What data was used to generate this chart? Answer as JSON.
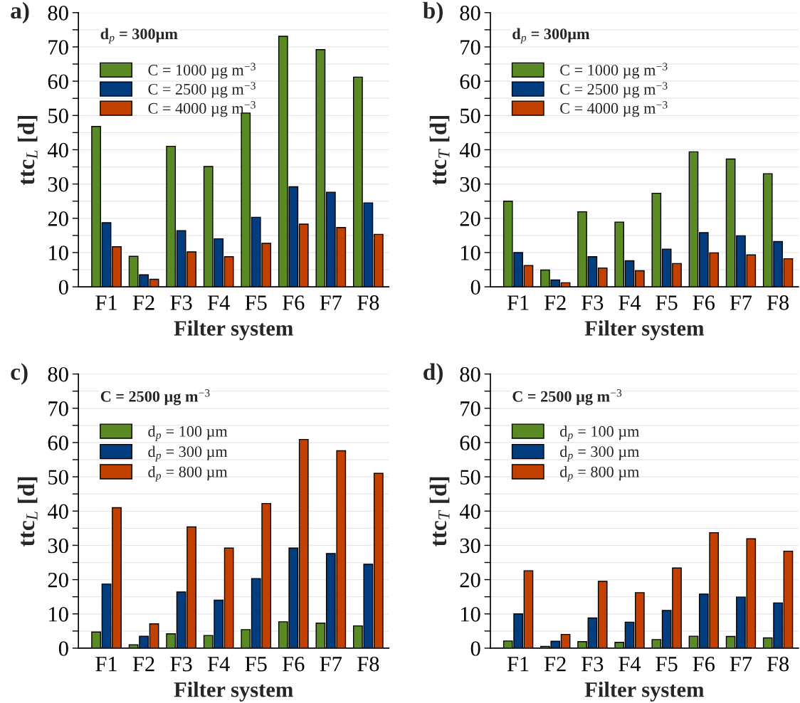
{
  "chart_data": [
    {
      "type": "bar",
      "title": "a)",
      "annotations": [
        "d$_{p}$ = 300µm"
      ],
      "xlabel": "Filter system",
      "ylabel": "ttc$_{L}$ [d]",
      "categories": [
        "F1",
        "F2",
        "F3",
        "F4",
        "F5",
        "F6",
        "F7",
        "F8"
      ],
      "series": [
        {
          "name": "C = 1000 µg m$^{−3}$",
          "color": "#5a8a23",
          "values": [
            46.8,
            8.9,
            41.0,
            35.1,
            50.7,
            73.1,
            69.2,
            61.2
          ]
        },
        {
          "name": "C = 2500 µg m$^{−3}$",
          "color": "#023d80",
          "values": [
            18.7,
            3.5,
            16.4,
            14.0,
            20.3,
            29.2,
            27.6,
            24.5
          ]
        },
        {
          "name": "C = 4000 µg m$^{−3}$",
          "color": "#c24100",
          "values": [
            11.7,
            2.2,
            10.2,
            8.8,
            12.7,
            18.3,
            17.3,
            15.3
          ]
        }
      ],
      "ylim": [
        0,
        80
      ],
      "yticks": [
        0,
        {
          "value": 5,
          "label": null
        },
        10,
        {
          "value": 15,
          "label": null
        },
        20,
        {
          "value": 25,
          "label": null
        },
        30,
        {
          "value": 35,
          "label": null
        },
        40,
        {
          "value": 45,
          "label": null
        },
        50,
        {
          "value": 55,
          "label": null
        },
        60,
        {
          "value": 65,
          "label": null
        },
        70,
        {
          "value": 75,
          "label": null
        },
        80
      ],
      "grid": "y",
      "legend": "top left"
    },
    {
      "type": "bar",
      "title": "b)",
      "annotations": [
        "d$_{p}$ = 300µm"
      ],
      "xlabel": "Filter system",
      "ylabel": "ttc$_{T}$ [d]",
      "categories": [
        "F1",
        "F2",
        "F3",
        "F4",
        "F5",
        "F6",
        "F7",
        "F8"
      ],
      "series": [
        {
          "name": "C = 1000 µg m$^{−3}$",
          "color": "#5a8a23",
          "values": [
            25.0,
            4.9,
            21.9,
            18.9,
            27.3,
            39.4,
            37.3,
            33.0
          ]
        },
        {
          "name": "C = 2500 µg m$^{−3}$",
          "color": "#023d80",
          "values": [
            10.0,
            2.0,
            8.8,
            7.6,
            11.0,
            15.8,
            14.9,
            13.2
          ]
        },
        {
          "name": "C = 4000 µg m$^{−3}$",
          "color": "#c24100",
          "values": [
            6.2,
            1.2,
            5.5,
            4.7,
            6.8,
            9.9,
            9.3,
            8.2
          ]
        }
      ],
      "ylim": [
        0,
        80
      ],
      "yticks": [
        0,
        {
          "value": 5,
          "label": null
        },
        10,
        {
          "value": 15,
          "label": null
        },
        20,
        {
          "value": 25,
          "label": null
        },
        30,
        {
          "value": 35,
          "label": null
        },
        40,
        {
          "value": 45,
          "label": null
        },
        50,
        {
          "value": 55,
          "label": null
        },
        60,
        {
          "value": 65,
          "label": null
        },
        70,
        {
          "value": 75,
          "label": null
        },
        80
      ],
      "grid": "y",
      "legend": "top left"
    },
    {
      "type": "bar",
      "title": "c)",
      "annotations": [
        "C = 2500 µg m$^{−3}$"
      ],
      "xlabel": "Filter system",
      "ylabel": "ttc$_{L}$ [d]",
      "categories": [
        "F1",
        "F2",
        "F3",
        "F4",
        "F5",
        "F6",
        "F7",
        "F8"
      ],
      "series": [
        {
          "name": "d$_{p}$ = 100 µm",
          "color": "#5a8a23",
          "values": [
            4.7,
            1.0,
            4.2,
            3.7,
            5.4,
            7.7,
            7.3,
            6.5
          ]
        },
        {
          "name": "d$_{p}$ = 300 µm",
          "color": "#023d80",
          "values": [
            18.7,
            3.5,
            16.4,
            14.0,
            20.3,
            29.2,
            27.6,
            24.5
          ]
        },
        {
          "name": "d$_{p}$ = 800 µm",
          "color": "#c24100",
          "values": [
            41.0,
            7.1,
            35.4,
            29.2,
            42.2,
            60.9,
            57.6,
            51.0
          ]
        }
      ],
      "ylim": [
        0,
        80
      ],
      "yticks": [
        0,
        {
          "value": 5,
          "label": null
        },
        10,
        {
          "value": 15,
          "label": null
        },
        20,
        {
          "value": 25,
          "label": null
        },
        30,
        {
          "value": 35,
          "label": null
        },
        40,
        {
          "value": 45,
          "label": null
        },
        50,
        {
          "value": 55,
          "label": null
        },
        60,
        {
          "value": 65,
          "label": null
        },
        70,
        {
          "value": 75,
          "label": null
        },
        80
      ],
      "grid": "y",
      "legend": "top left"
    },
    {
      "type": "bar",
      "title": "d)",
      "annotations": [
        "C = 2500 µg m$^{−3}$"
      ],
      "xlabel": "Filter system",
      "ylabel": "ttc$_{T}$ [d]",
      "categories": [
        "F1",
        "F2",
        "F3",
        "F4",
        "F5",
        "F6",
        "F7",
        "F8"
      ],
      "series": [
        {
          "name": "d$_{p}$ = 100 µm",
          "color": "#5a8a23",
          "values": [
            2.1,
            0.5,
            1.9,
            1.7,
            2.5,
            3.5,
            3.4,
            3.0
          ]
        },
        {
          "name": "d$_{p}$ = 300 µm",
          "color": "#023d80",
          "values": [
            10.0,
            2.0,
            8.8,
            7.6,
            11.0,
            15.8,
            14.9,
            13.2
          ]
        },
        {
          "name": "d$_{p}$ = 800 µm",
          "color": "#c24100",
          "values": [
            22.6,
            4.0,
            19.5,
            16.2,
            23.4,
            33.7,
            31.9,
            28.3
          ]
        }
      ],
      "ylim": [
        0,
        80
      ],
      "yticks": [
        0,
        {
          "value": 5,
          "label": null
        },
        10,
        {
          "value": 15,
          "label": null
        },
        20,
        {
          "value": 25,
          "label": null
        },
        30,
        {
          "value": 35,
          "label": null
        },
        40,
        {
          "value": 45,
          "label": null
        },
        50,
        {
          "value": 55,
          "label": null
        },
        60,
        {
          "value": 65,
          "label": null
        },
        70,
        {
          "value": 75,
          "label": null
        },
        80
      ],
      "grid": "y",
      "legend": "top left"
    }
  ]
}
